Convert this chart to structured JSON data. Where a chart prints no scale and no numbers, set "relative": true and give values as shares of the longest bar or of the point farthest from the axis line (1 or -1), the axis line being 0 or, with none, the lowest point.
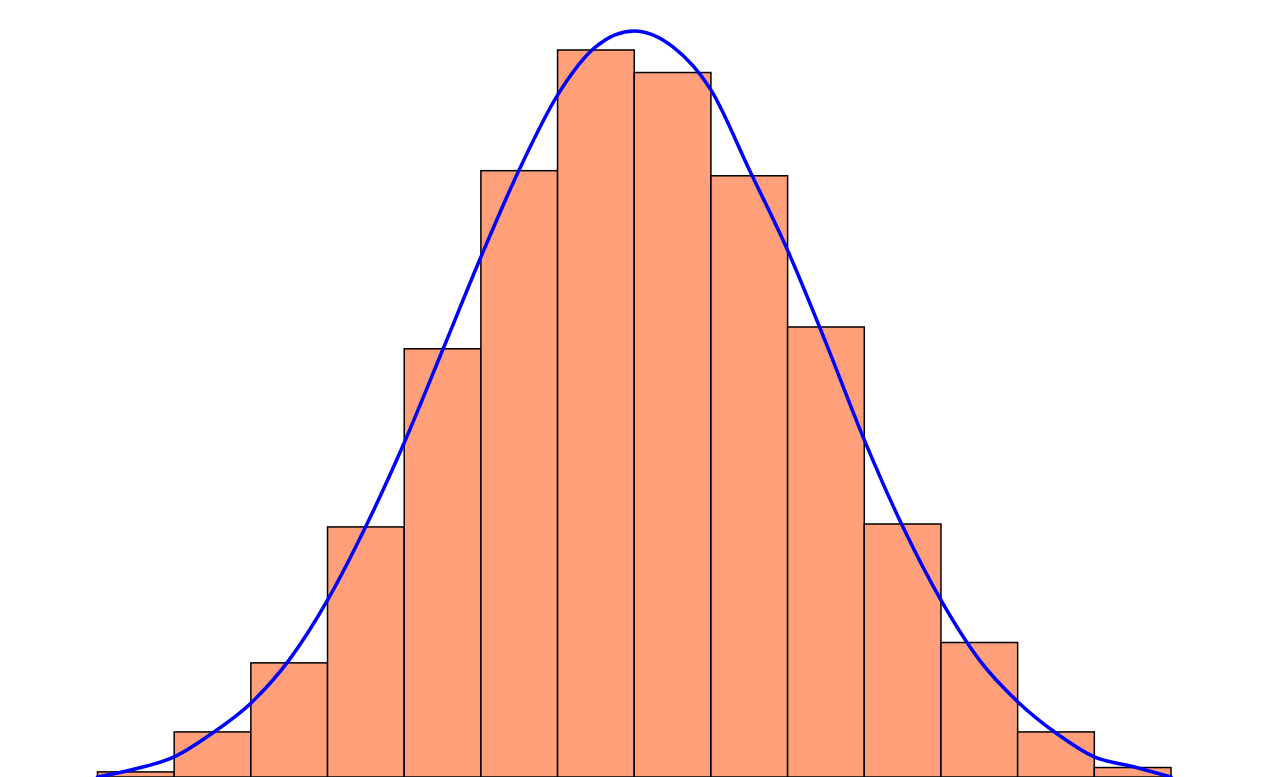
{
  "chart_data": [
    {
      "type": "bar",
      "relative": true,
      "categories": [
        null,
        null,
        null,
        null,
        null,
        null,
        null,
        null,
        null,
        null,
        null,
        null,
        null,
        null
      ],
      "color": "#ffa07a",
      "values": [
        0.007,
        0.062,
        0.157,
        0.344,
        0.589,
        0.834,
        1,
        0.969,
        0.827,
        0.619,
        0.348,
        0.185,
        0.062,
        0.013
      ]
    },
    {
      "type": "line",
      "relative": true,
      "categories": [
        null,
        null,
        null,
        null,
        null,
        null,
        null,
        null,
        null,
        null,
        null,
        null,
        null,
        null,
        null,
        null,
        null,
        null,
        null,
        null,
        null,
        null,
        null,
        null,
        null,
        null,
        null,
        null,
        null
      ],
      "color": "#0000ff",
      "values": [
        0,
        0.011,
        0.027,
        0.059,
        0.099,
        0.157,
        0.237,
        0.336,
        0.448,
        0.572,
        0.697,
        0.814,
        0.914,
        0.979,
        1,
        0.979,
        0.921,
        0.814,
        0.706,
        0.582,
        0.452,
        0.336,
        0.237,
        0.157,
        0.101,
        0.059,
        0.027,
        0.014,
        0
      ]
    }
  ]
}
